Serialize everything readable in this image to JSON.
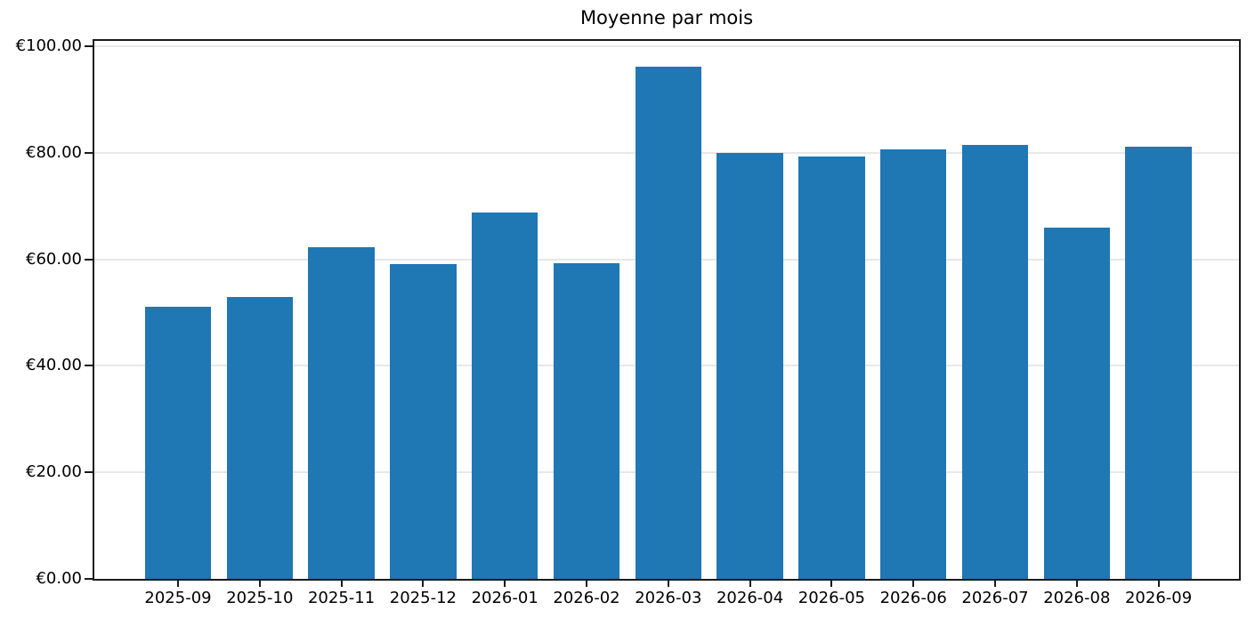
{
  "chart_data": {
    "type": "bar",
    "title": "Moyenne par mois",
    "categories": [
      "2025-09",
      "2025-10",
      "2025-11",
      "2025-12",
      "2026-01",
      "2026-02",
      "2026-03",
      "2026-04",
      "2026-05",
      "2026-06",
      "2026-07",
      "2026-08",
      "2026-09"
    ],
    "values": [
      51.1,
      52.9,
      62.3,
      59.1,
      68.8,
      59.3,
      96.2,
      80.0,
      79.3,
      80.6,
      81.4,
      66.0,
      81.1
    ],
    "xlabel": "",
    "ylabel": "",
    "ylim": [
      0,
      101
    ],
    "ytick_values": [
      0,
      20,
      40,
      60,
      80,
      100
    ],
    "ytick_labels": [
      "€0.00",
      "€20.00",
      "€40.00",
      "€60.00",
      "€80.00",
      "€100.00"
    ],
    "grid": "horizontal",
    "legend": "none",
    "bar_color": "#1f77b4",
    "axis_color": "#1a1a1a",
    "grid_color": "#e8e8e8",
    "text_color": "#000000"
  }
}
